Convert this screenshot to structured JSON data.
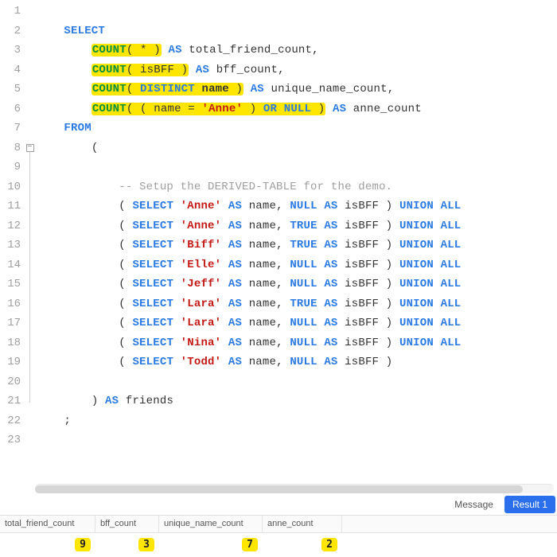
{
  "colors": {
    "keyword": "#2a7ae2",
    "string": "#c41a16",
    "highlight": "#ffe600",
    "green": "#0a8f3c",
    "comment": "#9e9e9e",
    "gutter": "#a0a0a0",
    "tab_active_bg": "#2b6fec"
  },
  "editor": {
    "line_numbers": [
      "1",
      "2",
      "3",
      "4",
      "5",
      "6",
      "7",
      "8",
      "9",
      "10",
      "11",
      "12",
      "13",
      "14",
      "15",
      "16",
      "17",
      "18",
      "19",
      "20",
      "21",
      "22",
      "23"
    ],
    "select": "SELECT",
    "as": "AS",
    "from": "FROM",
    "union_all": "UNION ALL",
    "null": "NULL",
    "true": "TRUE",
    "distinct": "DISTINCT",
    "or": "OR",
    "count": "COUNT",
    "lp": "(",
    "rp": ")",
    "star": "*",
    "alias_total": "total_friend_count",
    "alias_bff": "bff_count",
    "alias_unique": "unique_name_count",
    "alias_anne": "anne_count",
    "col_isbff": "isBFF",
    "col_name": "name",
    "cmp_anne": "'Anne'",
    "comment": "-- Setup the DERIVED-TABLE for the demo.",
    "names": [
      "'Anne'",
      "'Anne'",
      "'Biff'",
      "'Elle'",
      "'Jeff'",
      "'Lara'",
      "'Lara'",
      "'Nina'",
      "'Todd'"
    ],
    "bff_vals": [
      "NULL",
      "TRUE",
      "TRUE",
      "NULL",
      "NULL",
      "TRUE",
      "NULL",
      "NULL",
      "NULL"
    ],
    "alias_friends": "friends",
    "semi": ";",
    "comma": ","
  },
  "tabs": {
    "message": "Message",
    "result1": "Result 1"
  },
  "results": {
    "columns": [
      "total_friend_count",
      "bff_count",
      "unique_name_count",
      "anne_count"
    ],
    "values": [
      "9",
      "3",
      "7",
      "2"
    ]
  }
}
